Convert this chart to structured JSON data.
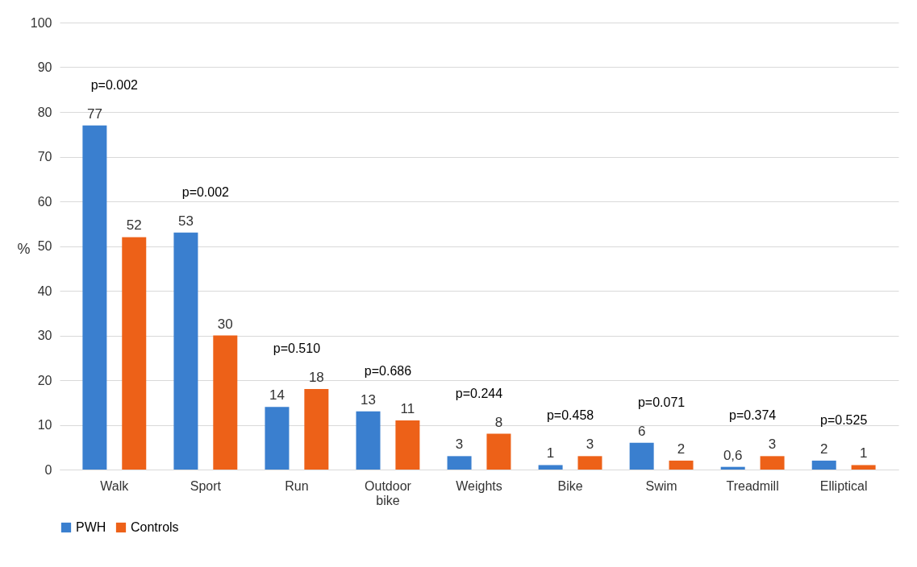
{
  "chart_data": {
    "type": "bar",
    "ylabel": "%",
    "categories": [
      "Walk",
      "Sport",
      "Run",
      "Outdoor bike",
      "Weights",
      "Bike",
      "Swim",
      "Treadmill",
      "Elliptical"
    ],
    "series": [
      {
        "name": "PWH",
        "color": "#3a7fcf",
        "values": [
          77,
          53,
          14,
          13,
          3,
          1,
          6,
          0.6,
          2
        ],
        "value_labels": [
          "77",
          "53",
          "14",
          "13",
          "3",
          "1",
          "6",
          "0,6",
          "2"
        ]
      },
      {
        "name": "Controls",
        "color": "#ed6118",
        "values": [
          52,
          30,
          18,
          11,
          8,
          3,
          2,
          3,
          1
        ],
        "value_labels": [
          "52",
          "30",
          "18",
          "11",
          "8",
          "3",
          "2",
          "3",
          "1"
        ]
      }
    ],
    "ylim": [
      0,
      100
    ],
    "yticks": [
      0,
      10,
      20,
      30,
      40,
      50,
      60,
      70,
      80,
      90,
      100
    ],
    "grid": "y",
    "legend": "bottom",
    "annotations": [
      "p=0.002",
      "p=0.002",
      "p=0.510",
      "p=0.686",
      "p=0.244",
      "p=0.458",
      "p=0.071",
      "p=0.374",
      "p=0.525"
    ]
  }
}
